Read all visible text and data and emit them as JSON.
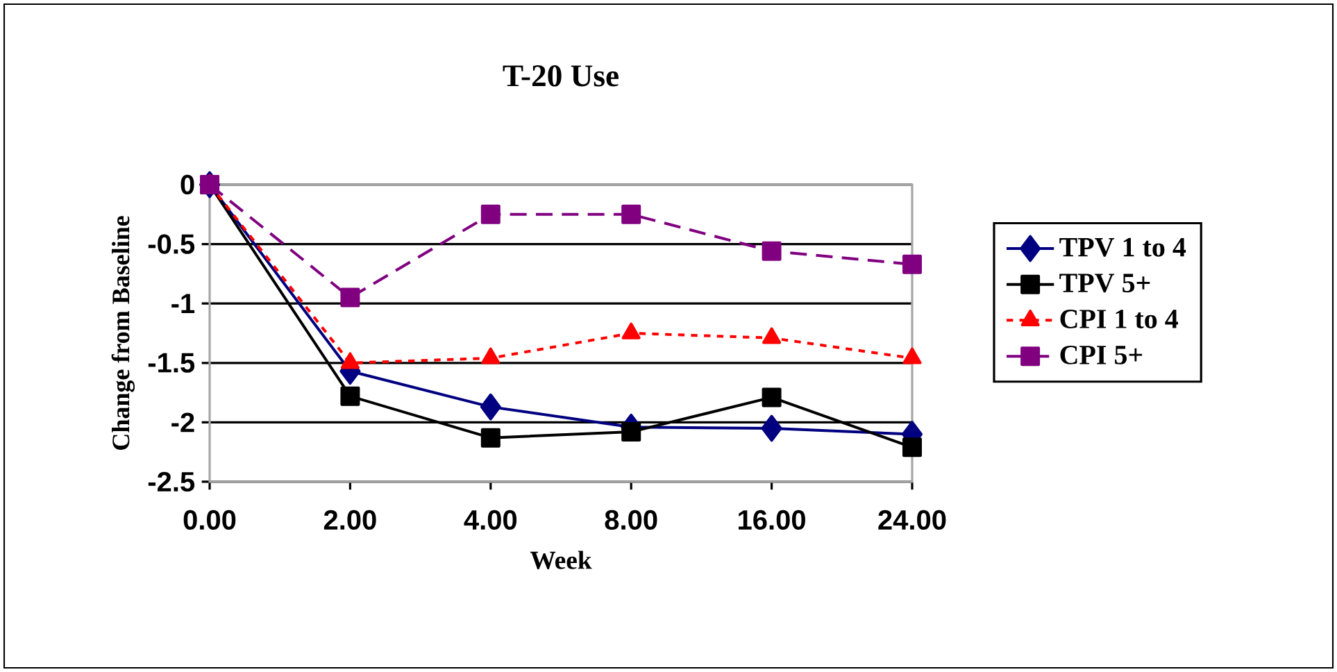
{
  "chart_data": {
    "type": "line",
    "title": "T-20 Use",
    "xlabel": "Week",
    "ylabel": "Change from Baseline",
    "categories": [
      "0.00",
      "2.00",
      "4.00",
      "8.00",
      "16.00",
      "24.00"
    ],
    "series": [
      {
        "name": "TPV 1 to 4",
        "color": "#000080",
        "marker": "diamond",
        "line_style": "solid",
        "values": [
          0,
          -1.57,
          -1.87,
          -2.04,
          -2.05,
          -2.1
        ]
      },
      {
        "name": "TPV 5+",
        "color": "#000000",
        "marker": "square",
        "line_style": "solid",
        "values": [
          0,
          -1.78,
          -2.13,
          -2.08,
          -1.79,
          -2.21
        ]
      },
      {
        "name": "CPI 1 to 4",
        "color": "#ff0000",
        "marker": "triangle",
        "line_style": "dotted",
        "values": [
          0,
          -1.5,
          -1.46,
          -1.25,
          -1.29,
          -1.46
        ]
      },
      {
        "name": "CPI 5+",
        "color": "#800080",
        "marker": "square",
        "line_style": "dashed",
        "values": [
          0,
          -0.95,
          -0.25,
          -0.25,
          -0.56,
          -0.67
        ]
      }
    ],
    "ylim": [
      -2.5,
      0
    ],
    "yticks": [
      0,
      -0.5,
      -1,
      -1.5,
      -2,
      -2.5
    ],
    "grid": "y",
    "legend": "right"
  }
}
